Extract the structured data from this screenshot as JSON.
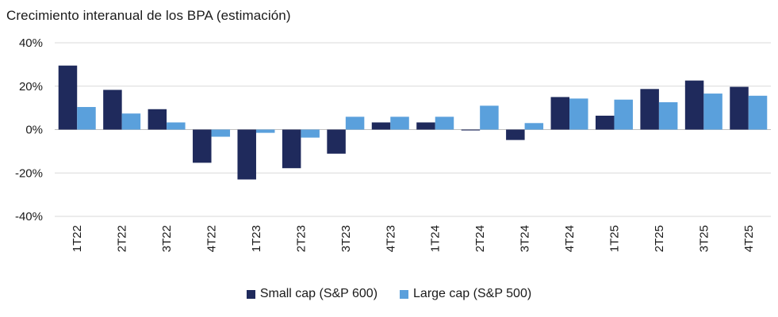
{
  "chart_data": {
    "type": "bar",
    "title": "Crecimiento interanual de los BPA (estimación)",
    "xlabel": "",
    "ylabel": "",
    "ylim": [
      -40,
      40
    ],
    "yticks": [
      40,
      20,
      0,
      -20,
      -40
    ],
    "ytick_labels": [
      "40%",
      "20%",
      "0%",
      "-20%",
      "-40%"
    ],
    "grid": true,
    "legend_position": "bottom",
    "categories": [
      "1T22",
      "2T22",
      "3T22",
      "4T22",
      "1T23",
      "2T23",
      "3T23",
      "4T23",
      "1T24",
      "2T24",
      "3T24",
      "4T24",
      "1T25",
      "2T25",
      "3T25",
      "4T25"
    ],
    "series": [
      {
        "name": "Small cap (S&P 600)",
        "color": "#1f2a5c",
        "values": [
          29.5,
          18.3,
          9.4,
          -15.3,
          -23.0,
          -17.8,
          -11.1,
          3.3,
          3.3,
          -0.4,
          -4.8,
          15.0,
          6.4,
          18.7,
          22.6,
          19.7
        ]
      },
      {
        "name": "Large cap (S&P 500)",
        "color": "#5aa0dc",
        "values": [
          10.4,
          7.4,
          3.3,
          -3.3,
          -1.5,
          -3.7,
          5.9,
          5.9,
          5.9,
          11.0,
          3.0,
          14.3,
          13.8,
          12.6,
          16.6,
          15.6
        ]
      }
    ]
  }
}
